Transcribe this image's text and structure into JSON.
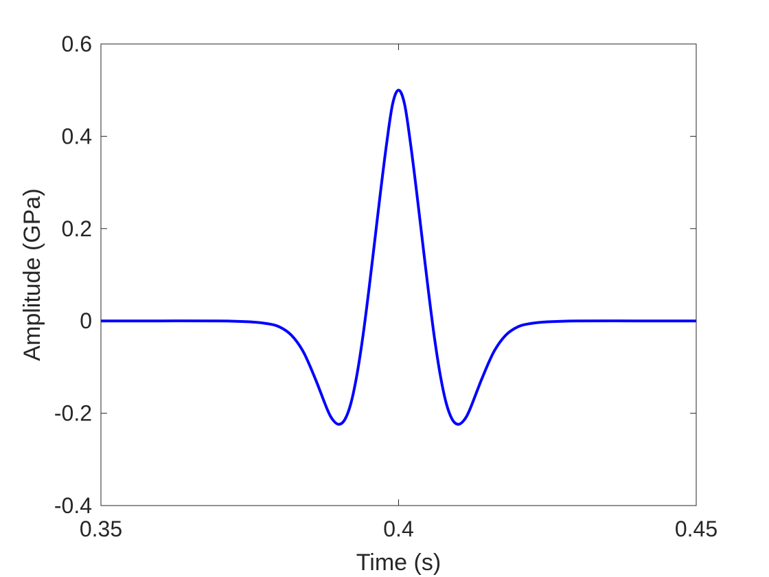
{
  "chart_data": {
    "type": "line",
    "title": "",
    "xlabel": "Time (s)",
    "ylabel": "Amplitude (GPa)",
    "xlim": [
      0.35,
      0.45
    ],
    "ylim": [
      -0.4,
      0.6
    ],
    "xticks": [
      0.35,
      0.4,
      0.45
    ],
    "xtick_labels": [
      "0.35",
      "0.4",
      "0.45"
    ],
    "yticks": [
      -0.4,
      -0.2,
      0,
      0.2,
      0.4,
      0.6
    ],
    "ytick_labels": [
      "-0.4",
      "-0.2",
      "0",
      "0.2",
      "0.4",
      "0.6"
    ],
    "grid": false,
    "box": true,
    "series": [
      {
        "color": "#0000ff",
        "x": [
          0.35,
          0.36,
          0.37,
          0.375,
          0.378,
          0.38,
          0.382,
          0.384,
          0.386,
          0.388,
          0.389,
          0.39,
          0.391,
          0.392,
          0.393,
          0.394,
          0.395,
          0.396,
          0.397,
          0.398,
          0.399,
          0.4,
          0.401,
          0.402,
          0.403,
          0.404,
          0.405,
          0.406,
          0.407,
          0.408,
          0.409,
          0.41,
          0.411,
          0.412,
          0.414,
          0.416,
          0.418,
          0.42,
          0.422,
          0.425,
          0.43,
          0.44,
          0.45
        ],
        "y": [
          0,
          0,
          0,
          -0.002,
          -0.006,
          -0.013,
          -0.031,
          -0.067,
          -0.125,
          -0.191,
          -0.215,
          -0.224,
          -0.213,
          -0.178,
          -0.117,
          -0.034,
          0.066,
          0.174,
          0.283,
          0.385,
          0.47,
          0.5,
          0.47,
          0.385,
          0.283,
          0.174,
          0.066,
          -0.034,
          -0.117,
          -0.178,
          -0.213,
          -0.224,
          -0.215,
          -0.191,
          -0.125,
          -0.067,
          -0.031,
          -0.013,
          -0.006,
          -0.002,
          0,
          0,
          0
        ]
      }
    ]
  }
}
